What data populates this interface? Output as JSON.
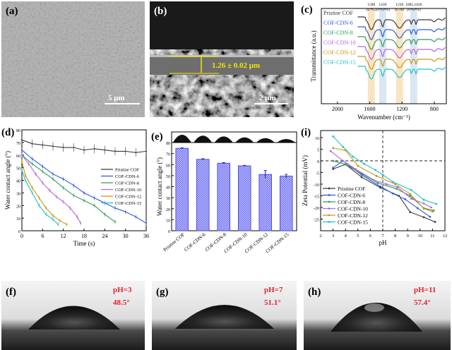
{
  "panels": {
    "a": {
      "label": "(a)",
      "scale_bar": "5 μm"
    },
    "b": {
      "label": "(b)",
      "scale_bar": "2 μm",
      "thickness": "1.26 ± 0.02 μm"
    },
    "c": {
      "label": "(c)"
    },
    "d": {
      "label": "(d)"
    },
    "e": {
      "label": "(e)"
    },
    "i": {
      "label": "(i)"
    },
    "f": {
      "label": "(f)",
      "ph": "pH=3",
      "angle": "48.5°"
    },
    "g": {
      "label": "(g)",
      "ph": "pH=7",
      "angle": "51.1°"
    },
    "h": {
      "label": "(h)",
      "ph": "pH=11",
      "angle": "57.4°"
    }
  },
  "colors": {
    "Pristine COF": "#3a3a3a",
    "COF-CDN-6": "#2a5bd7",
    "COF-CDN-8": "#2e9b5a",
    "COF-CDN-10": "#b266e0",
    "COF-CDN-12": "#c9960f",
    "COF-CDN-15": "#1fc2c8",
    "red_text": "#e8202a",
    "yellow": "#f2e600",
    "bar": "#7d7df5"
  },
  "chart_data": [
    {
      "id": "c",
      "type": "line",
      "title": "",
      "xlabel": "Wavenumber (cm⁻¹)",
      "ylabel": "Transmittance (a.u.)",
      "xlim": [
        2200,
        650
      ],
      "xticks": [
        "2000",
        "1600",
        "1200",
        "800"
      ],
      "annotations": [
        {
          "text": "1580",
          "sub": "(C=C)",
          "x": 1580
        },
        {
          "text": "1439",
          "sub": "(S=O=S)",
          "x": 1439
        },
        {
          "text": "1230",
          "sub": "(C-N)",
          "x": 1230
        },
        {
          "text": "1085,1026",
          "sub": "(S=O=S)",
          "x": 1055
        }
      ],
      "series": [
        {
          "name": "Pristine COF"
        },
        {
          "name": "COF-CDN-6"
        },
        {
          "name": "COF-CDN-8"
        },
        {
          "name": "COF-CDN-10"
        },
        {
          "name": "COF-CDN-12"
        },
        {
          "name": "COF-CDN-15"
        }
      ]
    },
    {
      "id": "d",
      "type": "line",
      "xlabel": "Time (s)",
      "ylabel": "Water contact angle (°)",
      "xlim": [
        0,
        36
      ],
      "ylim": [
        0,
        80
      ],
      "xticks": [
        "0",
        "6",
        "12",
        "18",
        "24",
        "30",
        "36"
      ],
      "yticks": [
        "0",
        "10",
        "20",
        "30",
        "40",
        "50",
        "60",
        "70",
        "80"
      ],
      "legend": "middle-right",
      "series": [
        {
          "name": "Pristine COF",
          "x": [
            0,
            3,
            6,
            9,
            12,
            15,
            18,
            21,
            24,
            27,
            30,
            33,
            36
          ],
          "y": [
            72,
            69,
            68,
            67,
            66,
            66,
            64,
            65,
            64,
            63,
            63,
            62,
            63
          ]
        },
        {
          "name": "COF-CDN-6",
          "x": [
            0,
            3,
            6,
            9,
            12,
            15,
            18,
            21,
            24,
            27,
            30,
            33,
            36
          ],
          "y": [
            64,
            57,
            51,
            45,
            41,
            36,
            30,
            26,
            22,
            18,
            15,
            11,
            6
          ]
        },
        {
          "name": "COF-CDN-8",
          "x": [
            0,
            3,
            6,
            9,
            12,
            15,
            18,
            21,
            24,
            27
          ],
          "y": [
            60,
            53,
            47,
            41,
            34,
            28,
            24,
            20,
            13,
            7
          ]
        },
        {
          "name": "COF-CDN-10",
          "x": [
            0,
            2,
            4,
            6,
            8,
            10,
            12,
            14,
            16,
            17
          ],
          "y": [
            60,
            53,
            45,
            38,
            32,
            27,
            23,
            18,
            11,
            6
          ]
        },
        {
          "name": "COF-CDN-12",
          "x": [
            0,
            1,
            3,
            5,
            7,
            9,
            11,
            13
          ],
          "y": [
            55,
            44,
            34,
            26,
            18,
            12,
            8,
            5
          ]
        },
        {
          "name": "COF-CDN-15",
          "x": [
            0,
            1,
            3,
            5,
            7,
            9,
            10.5
          ],
          "y": [
            48,
            40,
            30,
            20,
            13,
            9,
            5
          ]
        }
      ]
    },
    {
      "id": "e",
      "type": "bar",
      "ylabel": "Water contact angle (°)",
      "ylim": [
        0,
        80
      ],
      "yticks": [
        "0",
        "10",
        "20",
        "30",
        "40",
        "50",
        "60",
        "70",
        "80"
      ],
      "categories": [
        "Pristine COF",
        "COF-CDN-6",
        "COF-CDN-8",
        "COF-CDN-10",
        "COF-CDN-12",
        "COF-CDN-15"
      ],
      "values": [
        74.8,
        64.8,
        61.3,
        58.9,
        51.1,
        49.6
      ],
      "errors": [
        0.4,
        0.5,
        0.5,
        0.4,
        3.5,
        1.5
      ]
    },
    {
      "id": "i",
      "type": "line",
      "xlabel": "pH",
      "ylabel": "Zeta Potential (mV)",
      "xlim": [
        2,
        12
      ],
      "ylim": [
        -30,
        13
      ],
      "xticks": [
        "2",
        "3",
        "4",
        "5",
        "6",
        "7",
        "8",
        "9",
        "10",
        "11",
        "12"
      ],
      "yticks": [
        "-25",
        "-20",
        "-15",
        "-10",
        "-5",
        "0",
        "5",
        "10"
      ],
      "legend": "bottom-left",
      "series": [
        {
          "name": "Pristine COF",
          "x": [
            3,
            4,
            5.3,
            6.8,
            8.3,
            9.2,
            10.3,
            11.2
          ],
          "y": [
            -3.5,
            -1.5,
            -7,
            -11.5,
            -15,
            -22,
            -24.2,
            -26.2
          ]
        },
        {
          "name": "COF-CDN-6",
          "x": [
            3,
            3.8,
            5.3,
            6.8,
            7.8,
            8.8,
            9.8,
            10.8
          ],
          "y": [
            -3,
            0,
            -6,
            -11,
            -14,
            -16.5,
            -20.3,
            -24
          ]
        },
        {
          "name": "COF-CDN-8",
          "x": [
            3,
            4,
            5.3,
            6.6,
            8.1,
            9.2,
            10.3,
            11.1
          ],
          "y": [
            0,
            -1.5,
            -5.5,
            -9.5,
            -12,
            -15,
            -20.3,
            -21.3
          ]
        },
        {
          "name": "COF-CDN-10",
          "x": [
            2.8,
            3.8,
            4.8,
            6.3,
            7.3,
            8.2,
            9.3,
            10.3,
            10.9
          ],
          "y": [
            4.2,
            0,
            -3.5,
            -8.3,
            -10,
            -11.3,
            -16.3,
            -18.3,
            -20
          ]
        },
        {
          "name": "COF-CDN-12",
          "x": [
            3,
            4,
            5,
            6.5,
            8,
            9.2,
            10.3,
            11
          ],
          "y": [
            5.5,
            4.5,
            -2.2,
            -6.5,
            -10,
            -14.2,
            -20.5,
            -21.8
          ]
        },
        {
          "name": "COF-CDN-15",
          "x": [
            3,
            3.8,
            4.6,
            5.5,
            6.4,
            7,
            7.8,
            9.3,
            10.3,
            11.3
          ],
          "y": [
            10.5,
            6,
            1.8,
            -1.3,
            -3.9,
            -6,
            -9,
            -12.5,
            -16.7,
            -18.5
          ]
        }
      ]
    }
  ]
}
